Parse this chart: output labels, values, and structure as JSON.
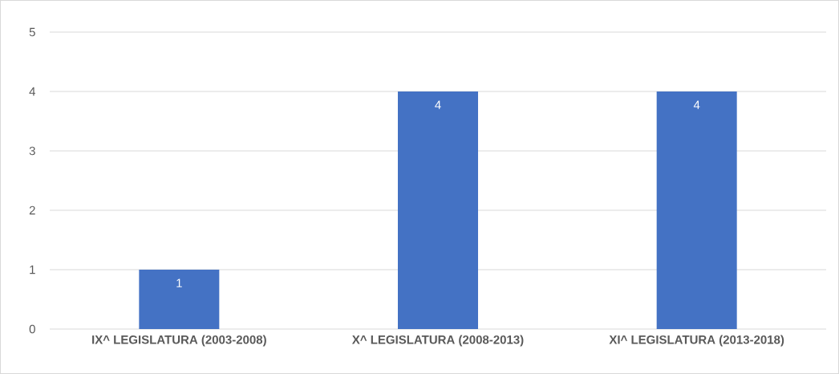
{
  "chart_data": {
    "type": "bar",
    "categories": [
      "IX^ LEGISLATURA (2003-2008)",
      "X^ LEGISLATURA (2008-2013)",
      "XI^ LEGISLATURA (2013-2018)"
    ],
    "values": [
      1,
      4,
      4
    ],
    "color": "#4472c4",
    "ylim": [
      0,
      5
    ],
    "yticks": [
      0,
      1,
      2,
      3,
      4,
      5
    ],
    "grid": "y",
    "data_labels": true
  }
}
